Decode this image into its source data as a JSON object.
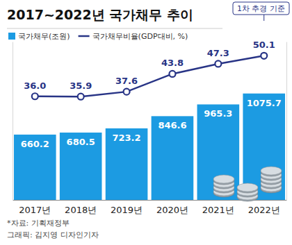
{
  "chart_data": {
    "type": "bar",
    "title": "2017~2022년 국가채무 추이",
    "categories": [
      "2017년",
      "2018년",
      "2019년",
      "2020년",
      "2021년",
      "2022년"
    ],
    "series": [
      {
        "name": "국가채무(조원)",
        "type": "bar",
        "color": "#1c9be2",
        "values": [
          660.2,
          680.5,
          723.2,
          846.6,
          965.3,
          1075.7
        ]
      },
      {
        "name": "국가채무비율(GDP대비, %)",
        "type": "line",
        "axis": "y2",
        "color": "#283486",
        "marker": "circle",
        "values": [
          36.0,
          35.9,
          37.6,
          43.8,
          47.3,
          50.1
        ],
        "value_labels": [
          "36.0",
          "35.9",
          "37.6",
          "43.8",
          "47.3",
          "50.1"
        ]
      }
    ],
    "ylim": [
      0,
      1600
    ],
    "y2lim": [
      0,
      55
    ],
    "data_labels": true,
    "tick_labels": "x",
    "grid": false,
    "legend": "top-left",
    "annotations": [
      "1차 추경 기준"
    ],
    "footnotes": [
      "*자료: 기획재정부",
      "그래픽: 김지영 디자인기자"
    ]
  }
}
